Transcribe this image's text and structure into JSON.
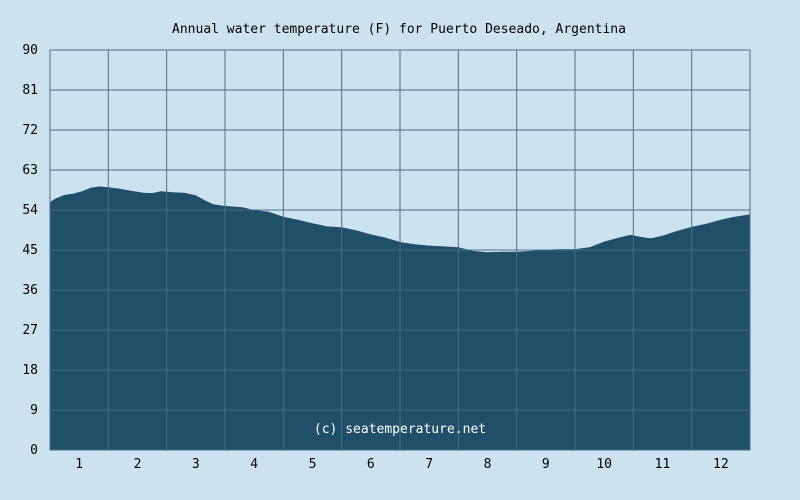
{
  "chart_data": {
    "type": "area",
    "title": "Annual water temperature (F) for Puerto Deseado, Argentina",
    "xlabel": "",
    "ylabel": "",
    "ylim": [
      0,
      90
    ],
    "y_ticks": [
      "90",
      "81",
      "72",
      "63",
      "54",
      "45",
      "36",
      "27",
      "18",
      "9",
      "0"
    ],
    "x_tick_labels": [
      "1",
      "2",
      "3",
      "4",
      "5",
      "6",
      "7",
      "8",
      "9",
      "10",
      "11",
      "12"
    ],
    "grid": true,
    "credit": "(c) seatemperature.net",
    "colors": {
      "background": "#cce3ef",
      "fill": "#1f4f69",
      "grid": "#4a6f86"
    },
    "series": [
      {
        "values": [
          [
            0.5,
            55.8
          ],
          [
            0.6,
            56.6
          ],
          [
            0.75,
            57.4
          ],
          [
            0.9,
            57.7
          ],
          [
            1.05,
            58.2
          ],
          [
            1.2,
            59.0
          ],
          [
            1.35,
            59.3
          ],
          [
            1.5,
            59.1
          ],
          [
            1.7,
            58.8
          ],
          [
            1.9,
            58.3
          ],
          [
            2.1,
            57.9
          ],
          [
            2.25,
            57.8
          ],
          [
            2.4,
            58.2
          ],
          [
            2.6,
            58.0
          ],
          [
            2.8,
            57.9
          ],
          [
            3.0,
            57.3
          ],
          [
            3.15,
            56.2
          ],
          [
            3.3,
            55.3
          ],
          [
            3.5,
            54.9
          ],
          [
            3.8,
            54.6
          ],
          [
            4.0,
            54.0
          ],
          [
            4.25,
            53.6
          ],
          [
            4.5,
            52.5
          ],
          [
            4.75,
            51.8
          ],
          [
            5.0,
            51.0
          ],
          [
            5.25,
            50.3
          ],
          [
            5.5,
            50.1
          ],
          [
            5.75,
            49.4
          ],
          [
            6.0,
            48.5
          ],
          [
            6.25,
            47.8
          ],
          [
            6.5,
            46.8
          ],
          [
            6.75,
            46.3
          ],
          [
            7.0,
            46.0
          ],
          [
            7.25,
            45.8
          ],
          [
            7.5,
            45.6
          ],
          [
            7.75,
            44.8
          ],
          [
            8.0,
            44.5
          ],
          [
            8.25,
            44.6
          ],
          [
            8.5,
            44.6
          ],
          [
            8.75,
            44.8
          ],
          [
            9.0,
            45.1
          ],
          [
            9.25,
            45.2
          ],
          [
            9.5,
            45.2
          ],
          [
            9.75,
            45.6
          ],
          [
            10.0,
            46.9
          ],
          [
            10.25,
            47.8
          ],
          [
            10.45,
            48.4
          ],
          [
            10.65,
            47.9
          ],
          [
            10.8,
            47.6
          ],
          [
            11.0,
            48.2
          ],
          [
            11.25,
            49.3
          ],
          [
            11.5,
            50.2
          ],
          [
            11.75,
            50.9
          ],
          [
            12.0,
            51.8
          ],
          [
            12.2,
            52.4
          ],
          [
            12.5,
            53.0
          ]
        ]
      }
    ]
  }
}
